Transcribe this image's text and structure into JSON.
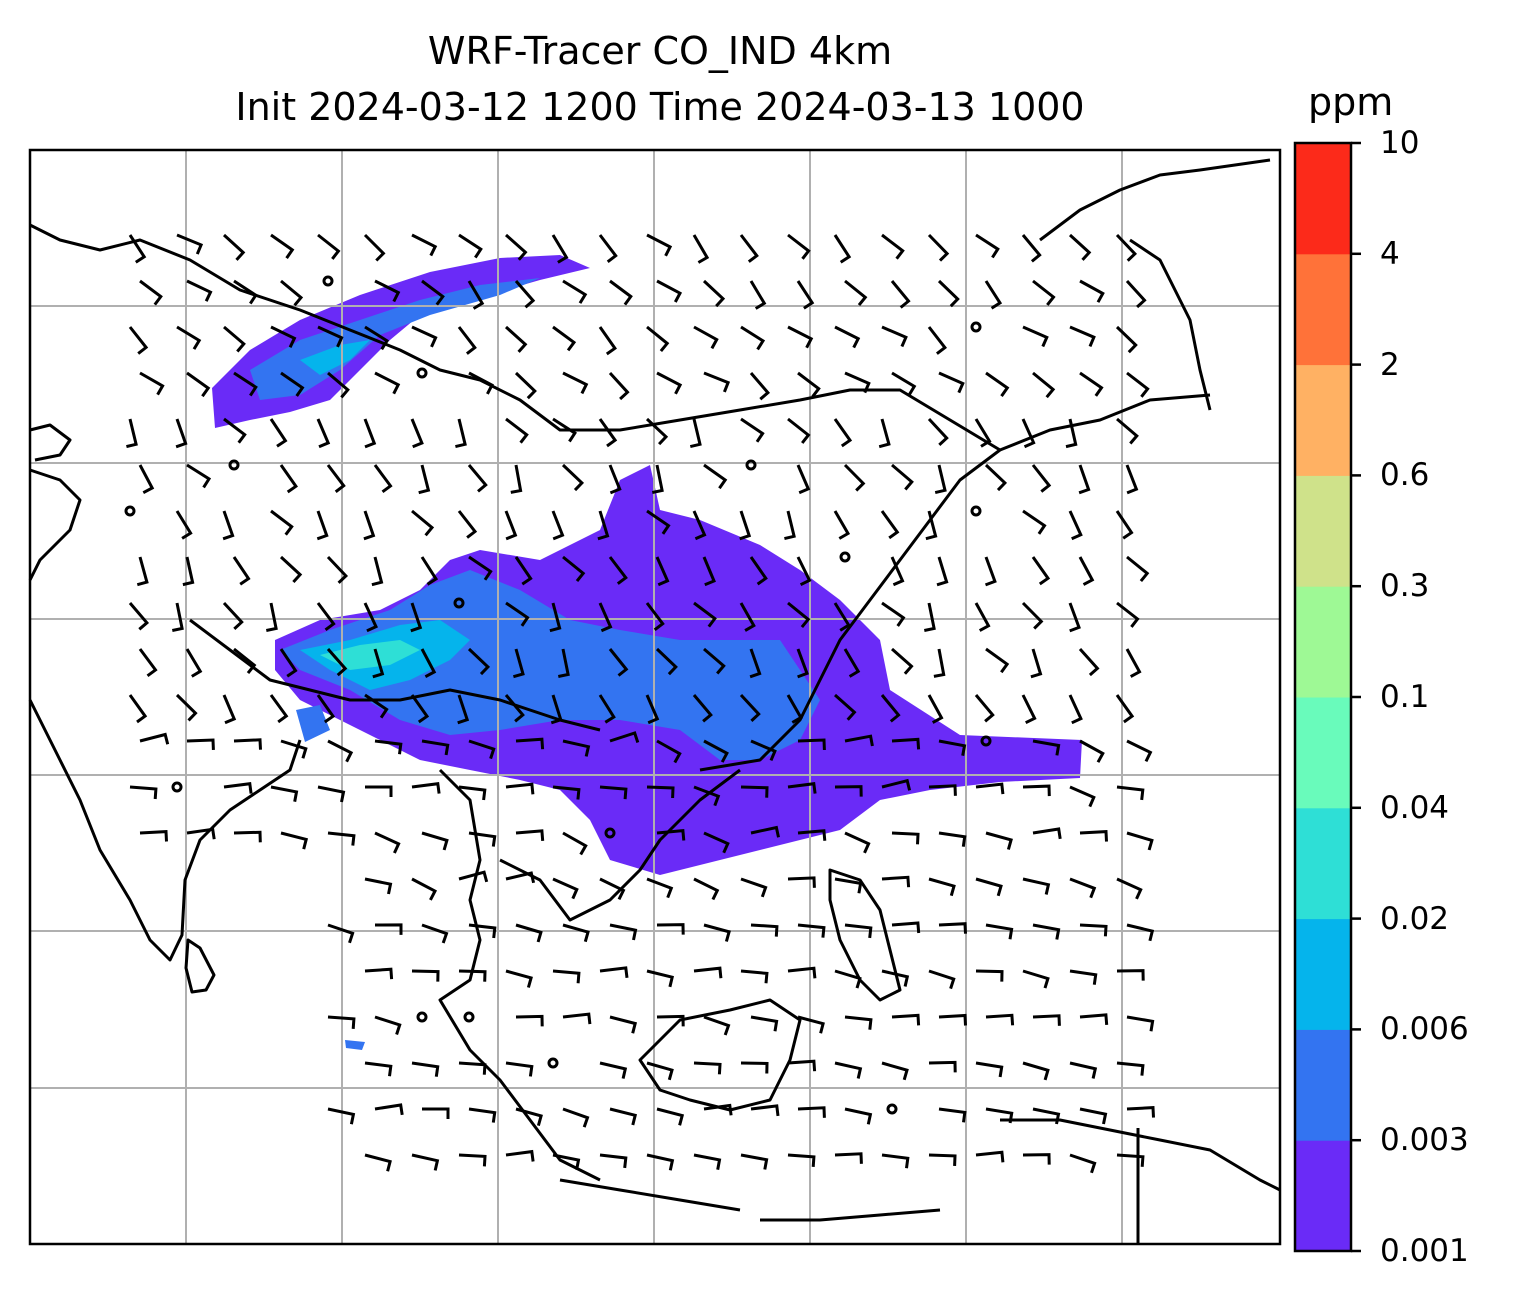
{
  "title": {
    "line1": "WRF-Tracer CO_IND 4km",
    "line2": "Init 2024-03-12 1200 Time 2024-03-13 1000"
  },
  "colorbar": {
    "unit": "ppm",
    "levels": [
      "0.001",
      "0.003",
      "0.006",
      "0.02",
      "0.04",
      "0.1",
      "0.3",
      "0.6",
      "2",
      "4",
      "10"
    ],
    "colors": [
      "#6a2bf7",
      "#3374f1",
      "#05b4ec",
      "#2edfd6",
      "#69fbbb",
      "#9ef995",
      "#cfe28a",
      "#ffb163",
      "#ff7239",
      "#fc2a1a"
    ]
  },
  "map": {
    "gridlines": true,
    "coastline_color": "#000000",
    "grid_color": "#b0b0b0"
  }
}
